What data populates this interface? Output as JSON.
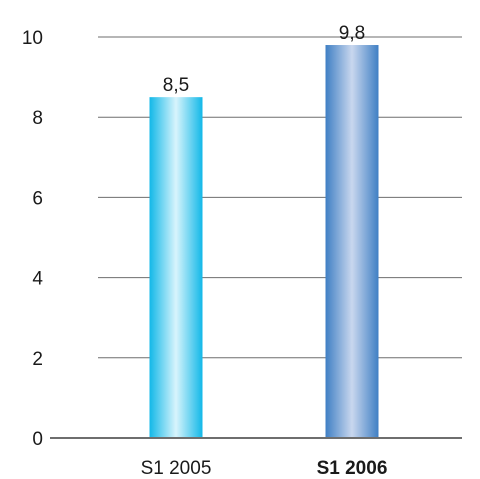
{
  "chart_data": {
    "type": "bar",
    "title": "",
    "xlabel": "",
    "ylabel": "",
    "categories": [
      "S1 2005",
      "S1 2006"
    ],
    "values": [
      8.5,
      9.8
    ],
    "value_labels": [
      "8,5",
      "9,8"
    ],
    "bold_categories": [
      false,
      true
    ],
    "ylim": [
      0,
      10
    ],
    "yticks": [
      0,
      2,
      4,
      6,
      8,
      10
    ],
    "ytick_labels": [
      "0",
      "2",
      "4",
      "6",
      "8",
      "10"
    ],
    "grid": true,
    "legend": "none",
    "colors": {
      "bar_1_edge": "#12b8e8",
      "bar_1_highlight": "#d8f4fc",
      "bar_2_edge": "#3f7fc4",
      "bar_2_highlight": "#c9d7ee",
      "gridline": "#6e6e6e",
      "axis": "#6e6e6e"
    }
  }
}
